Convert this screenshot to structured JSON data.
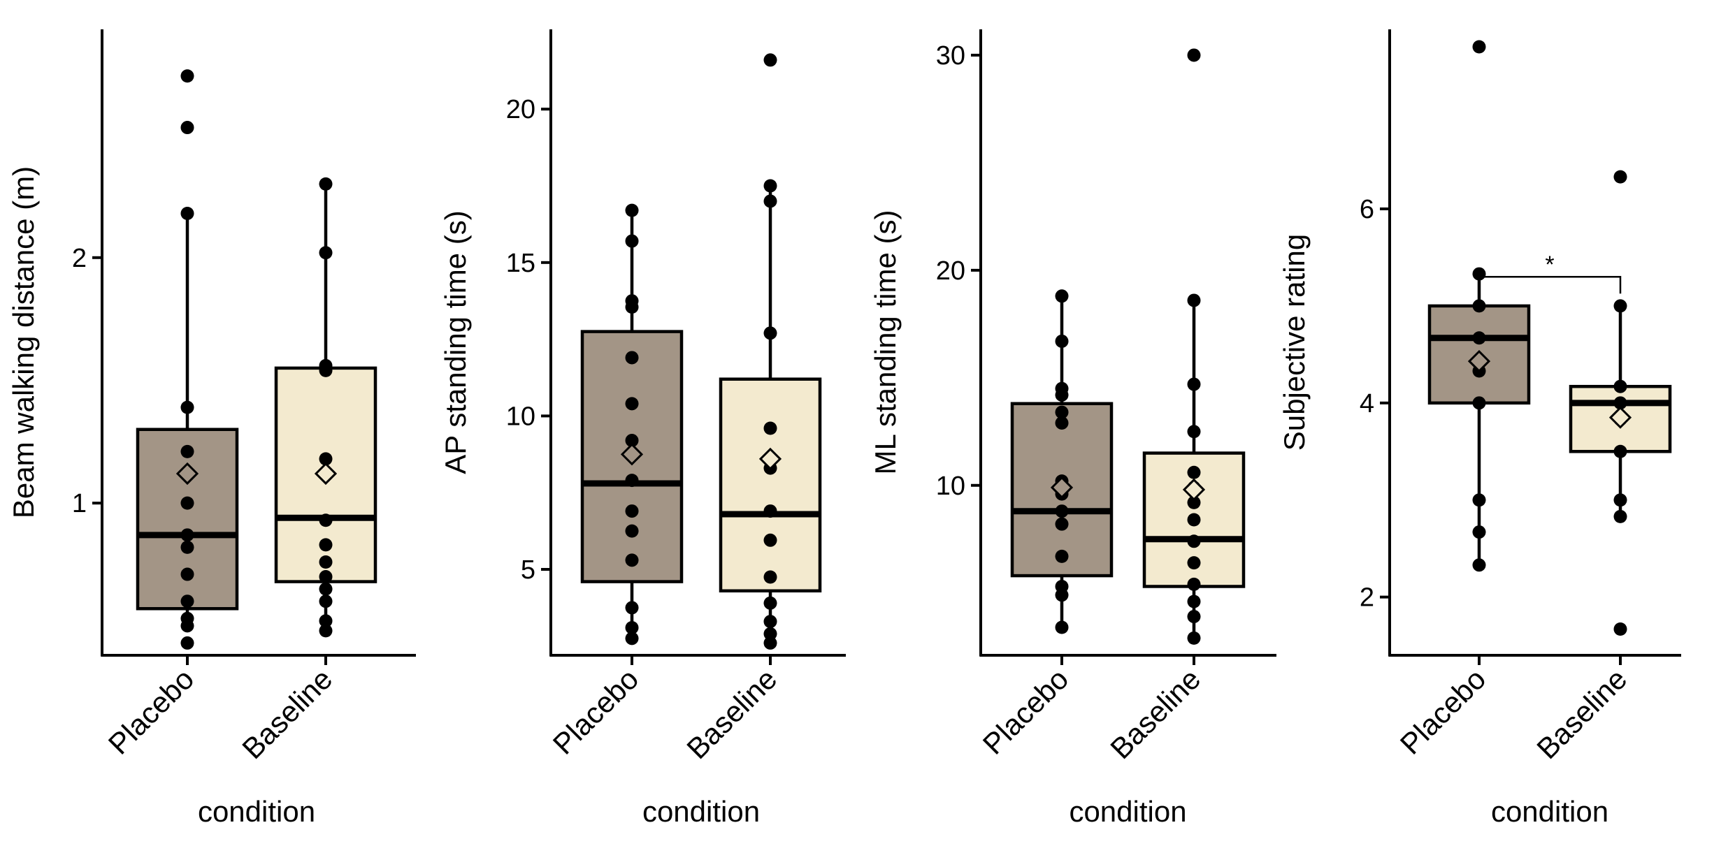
{
  "colors": {
    "placebo": "#a39586",
    "baseline": "#f3eacf",
    "ink": "#000000"
  },
  "chart_data": [
    {
      "type": "box",
      "xlabel": "condition",
      "ylabel": "Beam walking distance (m)",
      "ylim": [
        0.38,
        2.93
      ],
      "yticks": [
        1,
        2
      ],
      "categories": [
        "Placebo",
        "Baseline"
      ],
      "boxes": [
        {
          "name": "Placebo",
          "q1": 0.57,
          "median": 0.87,
          "q3": 1.3,
          "whisker_low": 0.5,
          "whisker_high": 2.18,
          "mean": 1.12,
          "points": [
            0.43,
            0.5,
            0.53,
            0.6,
            0.71,
            0.82,
            0.87,
            1.0,
            1.12,
            1.21,
            1.39,
            2.18,
            2.53,
            2.74
          ]
        },
        {
          "name": "Baseline",
          "q1": 0.68,
          "median": 0.94,
          "q3": 1.55,
          "whisker_low": 0.48,
          "whisker_high": 2.3,
          "mean": 1.12,
          "points": [
            0.48,
            0.52,
            0.6,
            0.65,
            0.7,
            0.76,
            0.83,
            0.93,
            1.12,
            1.18,
            1.54,
            1.56,
            2.02,
            2.3
          ]
        }
      ]
    },
    {
      "type": "box",
      "xlabel": "condition",
      "ylabel": "AP standing time (s)",
      "ylim": [
        2.2,
        22.6
      ],
      "yticks": [
        5,
        10,
        15,
        20
      ],
      "categories": [
        "Placebo",
        "Baseline"
      ],
      "boxes": [
        {
          "name": "Placebo",
          "q1": 4.6,
          "median": 7.8,
          "q3": 12.75,
          "whisker_low": 2.75,
          "whisker_high": 16.7,
          "mean": 8.75,
          "points": [
            2.75,
            3.1,
            3.75,
            5.3,
            6.25,
            6.9,
            7.9,
            8.7,
            9.2,
            10.4,
            11.9,
            13.55,
            13.75,
            15.7,
            16.7
          ]
        },
        {
          "name": "Baseline",
          "q1": 4.3,
          "median": 6.8,
          "q3": 11.2,
          "whisker_low": 2.6,
          "whisker_high": 17.5,
          "mean": 8.6,
          "points": [
            2.6,
            2.9,
            3.3,
            3.9,
            4.75,
            5.95,
            6.9,
            8.3,
            8.6,
            9.6,
            12.7,
            17.0,
            17.5,
            21.6
          ]
        }
      ]
    },
    {
      "type": "box",
      "xlabel": "condition",
      "ylabel": "ML standing time (s)",
      "ylim": [
        2.1,
        31.2
      ],
      "yticks": [
        10,
        20,
        30
      ],
      "categories": [
        "Placebo",
        "Baseline"
      ],
      "boxes": [
        {
          "name": "Placebo",
          "q1": 5.8,
          "median": 8.8,
          "q3": 13.8,
          "whisker_low": 3.4,
          "whisker_high": 18.8,
          "mean": 9.9,
          "points": [
            3.4,
            4.9,
            5.3,
            6.7,
            8.2,
            8.8,
            9.6,
            10.2,
            12.9,
            13.4,
            14.2,
            14.5,
            16.7,
            18.8
          ]
        },
        {
          "name": "Baseline",
          "q1": 5.3,
          "median": 7.5,
          "q3": 11.5,
          "whisker_low": 2.9,
          "whisker_high": 18.6,
          "mean": 9.8,
          "points": [
            2.9,
            3.9,
            4.6,
            5.4,
            6.4,
            7.4,
            8.4,
            9.2,
            9.9,
            10.6,
            12.5,
            14.7,
            18.6,
            30.0
          ]
        }
      ]
    },
    {
      "type": "box",
      "xlabel": "condition",
      "ylabel": "Subjective rating",
      "ylim": [
        1.4,
        7.85
      ],
      "yticks": [
        2,
        4,
        6
      ],
      "categories": [
        "Placebo",
        "Baseline"
      ],
      "boxes": [
        {
          "name": "Placebo",
          "q1": 4.0,
          "median": 4.67,
          "q3": 5.0,
          "whisker_low": 2.33,
          "whisker_high": 5.33,
          "mean": 4.43,
          "points": [
            2.33,
            2.67,
            3.0,
            4.0,
            4.33,
            4.67,
            5.0,
            5.33,
            7.67
          ]
        },
        {
          "name": "Baseline",
          "q1": 3.5,
          "median": 4.0,
          "q3": 4.17,
          "whisker_low": 2.83,
          "whisker_high": 5.0,
          "mean": 3.85,
          "points": [
            1.67,
            2.83,
            3.0,
            3.5,
            3.83,
            4.0,
            4.17,
            5.0,
            6.33
          ]
        }
      ],
      "significance": {
        "from": "Placebo",
        "to": "Baseline",
        "label": "*",
        "y": 5.3
      }
    }
  ]
}
